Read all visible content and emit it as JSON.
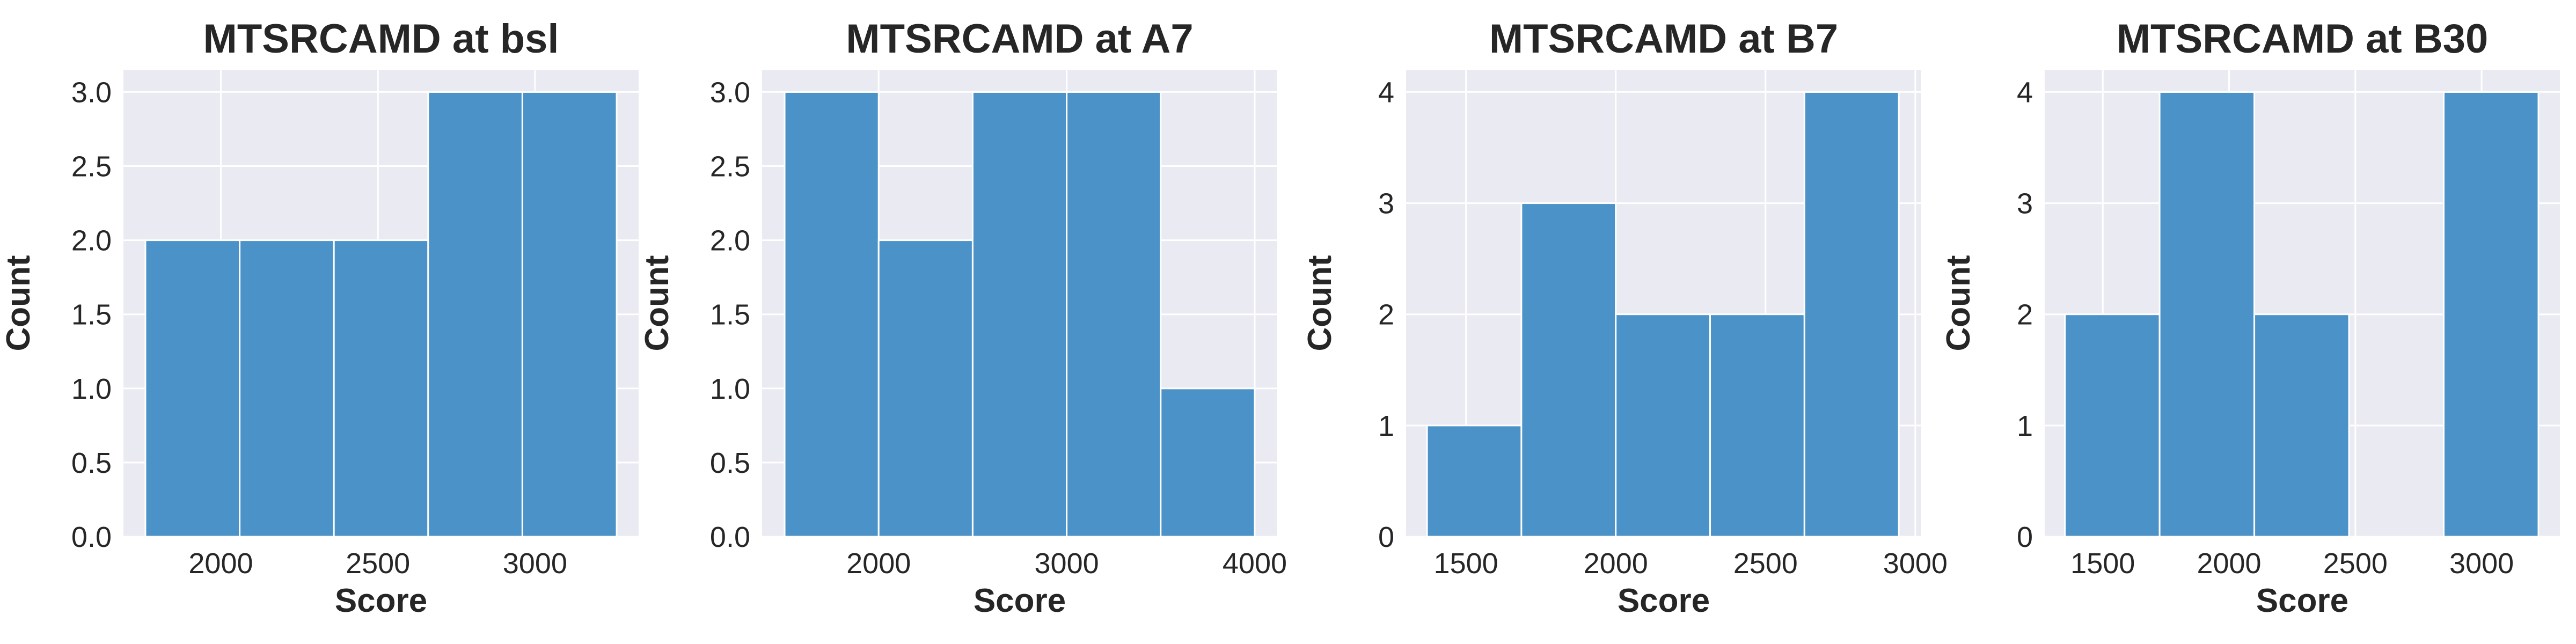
{
  "chart_data": [
    {
      "type": "bar",
      "title": "MTSRCAMD at bsl",
      "xlabel": "Score",
      "ylabel": "Count",
      "bins": [
        {
          "x0": 1760,
          "x1": 2060,
          "count": 2
        },
        {
          "x0": 2060,
          "x1": 2360,
          "count": 2
        },
        {
          "x0": 2360,
          "x1": 2660,
          "count": 2
        },
        {
          "x0": 2660,
          "x1": 2960,
          "count": 3
        },
        {
          "x0": 2960,
          "x1": 3260,
          "count": 3
        }
      ],
      "xlim": [
        1690,
        3330
      ],
      "ylim": [
        0,
        3.15
      ],
      "xticks": [
        2000,
        2500,
        3000
      ],
      "xtick_labels": [
        "2000",
        "2500",
        "3000"
      ],
      "yticks": [
        0,
        0.5,
        1,
        1.5,
        2,
        2.5,
        3
      ],
      "ytick_labels": [
        "0.0",
        "0.5",
        "1.0",
        "1.5",
        "2.0",
        "2.5",
        "3.0"
      ],
      "grid": true
    },
    {
      "type": "bar",
      "title": "MTSRCAMD at A7",
      "xlabel": "Score",
      "ylabel": "Count",
      "bins": [
        {
          "x0": 1500,
          "x1": 2000,
          "count": 3
        },
        {
          "x0": 2000,
          "x1": 2500,
          "count": 2
        },
        {
          "x0": 2500,
          "x1": 3000,
          "count": 3
        },
        {
          "x0": 3000,
          "x1": 3500,
          "count": 3
        },
        {
          "x0": 3500,
          "x1": 4000,
          "count": 1
        }
      ],
      "xlim": [
        1380,
        4120
      ],
      "ylim": [
        0,
        3.15
      ],
      "xticks": [
        2000,
        3000,
        4000
      ],
      "xtick_labels": [
        "2000",
        "3000",
        "4000"
      ],
      "yticks": [
        0,
        0.5,
        1,
        1.5,
        2,
        2.5,
        3
      ],
      "ytick_labels": [
        "0.0",
        "0.5",
        "1.0",
        "1.5",
        "2.0",
        "2.5",
        "3.0"
      ],
      "grid": true
    },
    {
      "type": "bar",
      "title": "MTSRCAMD at B7",
      "xlabel": "Score",
      "ylabel": "Count",
      "bins": [
        {
          "x0": 1370,
          "x1": 1685,
          "count": 1
        },
        {
          "x0": 1685,
          "x1": 2000,
          "count": 3
        },
        {
          "x0": 2000,
          "x1": 2315,
          "count": 2
        },
        {
          "x0": 2315,
          "x1": 2630,
          "count": 2
        },
        {
          "x0": 2630,
          "x1": 2945,
          "count": 4
        }
      ],
      "xlim": [
        1300,
        3020
      ],
      "ylim": [
        0,
        4.2
      ],
      "xticks": [
        1500,
        2000,
        2500,
        3000
      ],
      "xtick_labels": [
        "1500",
        "2000",
        "2500",
        "3000"
      ],
      "yticks": [
        0,
        1,
        2,
        3,
        4
      ],
      "ytick_labels": [
        "0",
        "1",
        "2",
        "3",
        "4"
      ],
      "grid": true
    },
    {
      "type": "bar",
      "title": "MTSRCAMD at B30",
      "xlabel": "Score",
      "ylabel": "Count",
      "bins": [
        {
          "x0": 1350,
          "x1": 1725,
          "count": 2
        },
        {
          "x0": 1725,
          "x1": 2100,
          "count": 4
        },
        {
          "x0": 2100,
          "x1": 2475,
          "count": 2
        },
        {
          "x0": 2475,
          "x1": 2850,
          "count": 0
        },
        {
          "x0": 2850,
          "x1": 3225,
          "count": 4
        }
      ],
      "xlim": [
        1270,
        3310
      ],
      "ylim": [
        0,
        4.2
      ],
      "xticks": [
        1500,
        2000,
        2500,
        3000
      ],
      "xtick_labels": [
        "1500",
        "2000",
        "2500",
        "3000"
      ],
      "yticks": [
        0,
        1,
        2,
        3,
        4
      ],
      "ytick_labels": [
        "0",
        "1",
        "2",
        "3",
        "4"
      ],
      "grid": true
    }
  ],
  "colors": {
    "bar_fill": "#4a92c7",
    "bar_edge": "#ffffff",
    "plot_bg": "#eaeaf2",
    "grid": "#ffffff",
    "text": "#262626"
  }
}
